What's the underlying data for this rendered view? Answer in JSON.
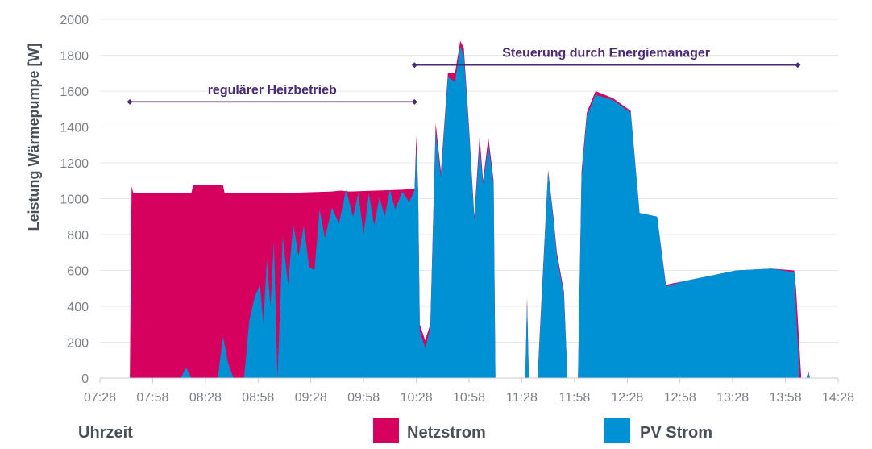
{
  "colors": {
    "netzstrom": "#d6005f",
    "pv": "#0091d4",
    "grid": "#e6e8eb",
    "annotation": "#4a2a73",
    "tick": "#7b7f86",
    "title": "#4b4f57"
  },
  "chart_data": {
    "type": "area",
    "ylabel": "Leistung Wärmepumpe [W]",
    "xlabel": "Uhrzeit",
    "ylim": [
      0,
      2000
    ],
    "yticks": [
      0,
      200,
      400,
      600,
      800,
      1000,
      1200,
      1400,
      1600,
      1800,
      2000
    ],
    "xlim": [
      "07:28",
      "14:28"
    ],
    "xticks": [
      "07:28",
      "07:58",
      "08:28",
      "08:58",
      "09:28",
      "09:58",
      "10:28",
      "10:58",
      "11:28",
      "11:58",
      "12:28",
      "12:58",
      "13:28",
      "13:58",
      "14:28"
    ],
    "grid": true,
    "legend_position": "bottom",
    "series": [
      {
        "name": "Netzstrom",
        "points": [
          [
            "07:28",
            0
          ],
          [
            "07:45",
            0
          ],
          [
            "07:46",
            1070
          ],
          [
            "07:47",
            1030
          ],
          [
            "08:20",
            1030
          ],
          [
            "08:21",
            1075
          ],
          [
            "08:38",
            1075
          ],
          [
            "08:39",
            1030
          ],
          [
            "09:10",
            1030
          ],
          [
            "09:40",
            1040
          ],
          [
            "09:45",
            1045
          ],
          [
            "09:50",
            1040
          ],
          [
            "10:05",
            1045
          ],
          [
            "10:20",
            1050
          ],
          [
            "10:27",
            1055
          ],
          [
            "10:28",
            1350
          ],
          [
            "10:29",
            1055
          ],
          [
            "10:30",
            300
          ],
          [
            "10:33",
            210
          ],
          [
            "10:36",
            300
          ],
          [
            "10:39",
            1420
          ],
          [
            "10:42",
            1150
          ],
          [
            "10:46",
            1700
          ],
          [
            "10:50",
            1700
          ],
          [
            "10:53",
            1880
          ],
          [
            "10:55",
            1840
          ],
          [
            "10:58",
            1400
          ],
          [
            "11:01",
            900
          ],
          [
            "11:04",
            1350
          ],
          [
            "11:06",
            1100
          ],
          [
            "11:09",
            1340
          ],
          [
            "11:12",
            1100
          ],
          [
            "11:13",
            0
          ],
          [
            "11:30",
            0
          ],
          [
            "11:31",
            450
          ],
          [
            "11:32",
            0
          ],
          [
            "11:37",
            0
          ],
          [
            "11:38",
            200
          ],
          [
            "11:43",
            1160
          ],
          [
            "11:46",
            900
          ],
          [
            "11:48",
            700
          ],
          [
            "11:52",
            480
          ],
          [
            "11:54",
            0
          ],
          [
            "12:00",
            0
          ],
          [
            "12:02",
            1150
          ],
          [
            "12:05",
            1480
          ],
          [
            "12:10",
            1600
          ],
          [
            "12:20",
            1560
          ],
          [
            "12:30",
            1490
          ],
          [
            "12:35",
            920
          ],
          [
            "12:45",
            900
          ],
          [
            "12:50",
            520
          ],
          [
            "13:00",
            540
          ],
          [
            "13:30",
            600
          ],
          [
            "13:50",
            610
          ],
          [
            "14:03",
            600
          ],
          [
            "14:04",
            500
          ],
          [
            "14:07",
            0
          ],
          [
            "14:10",
            0
          ],
          [
            "14:11",
            40
          ],
          [
            "14:12",
            0
          ],
          [
            "14:28",
            0
          ]
        ]
      },
      {
        "name": "PV Strom",
        "points": [
          [
            "07:28",
            0
          ],
          [
            "08:14",
            0
          ],
          [
            "08:17",
            60
          ],
          [
            "08:20",
            0
          ],
          [
            "08:35",
            0
          ],
          [
            "08:38",
            230
          ],
          [
            "08:41",
            80
          ],
          [
            "08:44",
            0
          ],
          [
            "08:50",
            0
          ],
          [
            "08:53",
            320
          ],
          [
            "08:56",
            450
          ],
          [
            "08:59",
            520
          ],
          [
            "09:01",
            310
          ],
          [
            "09:03",
            660
          ],
          [
            "09:05",
            400
          ],
          [
            "09:07",
            760
          ],
          [
            "09:09",
            0
          ],
          [
            "09:12",
            790
          ],
          [
            "09:15",
            520
          ],
          [
            "09:18",
            860
          ],
          [
            "09:21",
            680
          ],
          [
            "09:24",
            850
          ],
          [
            "09:27",
            620
          ],
          [
            "09:30",
            600
          ],
          [
            "09:33",
            940
          ],
          [
            "09:36",
            780
          ],
          [
            "09:40",
            950
          ],
          [
            "09:44",
            860
          ],
          [
            "09:48",
            1050
          ],
          [
            "09:52",
            900
          ],
          [
            "09:55",
            1030
          ],
          [
            "09:58",
            800
          ],
          [
            "10:01",
            1030
          ],
          [
            "10:04",
            850
          ],
          [
            "10:07",
            1010
          ],
          [
            "10:10",
            900
          ],
          [
            "10:13",
            1050
          ],
          [
            "10:16",
            940
          ],
          [
            "10:20",
            1040
          ],
          [
            "10:24",
            980
          ],
          [
            "10:27",
            1050
          ],
          [
            "10:28",
            1280
          ],
          [
            "10:29",
            1050
          ],
          [
            "10:30",
            260
          ],
          [
            "10:33",
            170
          ],
          [
            "10:36",
            280
          ],
          [
            "10:39",
            1380
          ],
          [
            "10:42",
            1120
          ],
          [
            "10:46",
            1680
          ],
          [
            "10:50",
            1650
          ],
          [
            "10:53",
            1850
          ],
          [
            "10:55",
            1800
          ],
          [
            "10:58",
            1380
          ],
          [
            "11:01",
            880
          ],
          [
            "11:04",
            1300
          ],
          [
            "11:06",
            1080
          ],
          [
            "11:09",
            1300
          ],
          [
            "11:12",
            1080
          ],
          [
            "11:13",
            0
          ],
          [
            "11:30",
            0
          ],
          [
            "11:31",
            430
          ],
          [
            "11:32",
            0
          ],
          [
            "11:37",
            0
          ],
          [
            "11:38",
            180
          ],
          [
            "11:43",
            1150
          ],
          [
            "11:46",
            880
          ],
          [
            "11:48",
            680
          ],
          [
            "11:52",
            460
          ],
          [
            "11:54",
            0
          ],
          [
            "12:00",
            0
          ],
          [
            "12:02",
            1120
          ],
          [
            "12:05",
            1460
          ],
          [
            "12:10",
            1580
          ],
          [
            "12:20",
            1550
          ],
          [
            "12:30",
            1480
          ],
          [
            "12:35",
            920
          ],
          [
            "12:45",
            900
          ],
          [
            "12:50",
            510
          ],
          [
            "13:00",
            540
          ],
          [
            "13:30",
            600
          ],
          [
            "13:50",
            610
          ],
          [
            "14:03",
            590
          ],
          [
            "14:06",
            0
          ],
          [
            "14:10",
            0
          ],
          [
            "14:11",
            30
          ],
          [
            "14:12",
            0
          ],
          [
            "14:28",
            0
          ]
        ]
      }
    ],
    "annotations": [
      {
        "label": "regulärer Heizbetrieb",
        "from": "07:45",
        "to": "10:27",
        "y": 1540
      },
      {
        "label": "Steuerung durch Energiemanager",
        "from": "10:27",
        "to": "14:05",
        "y": 1745
      }
    ]
  }
}
